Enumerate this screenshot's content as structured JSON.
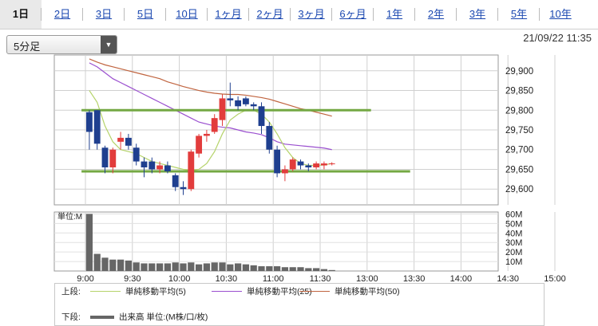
{
  "tabs": [
    {
      "label": "1日",
      "active": true
    },
    {
      "label": "2日"
    },
    {
      "label": "3日"
    },
    {
      "label": "5日"
    },
    {
      "label": "10日"
    },
    {
      "label": "1ヶ月"
    },
    {
      "label": "2ヶ月"
    },
    {
      "label": "3ヶ月"
    },
    {
      "label": "6ヶ月"
    },
    {
      "label": "1年"
    },
    {
      "label": "2年"
    },
    {
      "label": "3年"
    },
    {
      "label": "5年"
    },
    {
      "label": "10年"
    }
  ],
  "interval_select": {
    "value": "5分足",
    "arrow_icon": "triangle-down-icon"
  },
  "timestamp": "21/09/22 11:35",
  "colors": {
    "up": "#e23c3c",
    "down": "#1f3f8f",
    "sma5": "#b5d36a",
    "sma25": "#9a4fcf",
    "sma50": "#c0643f",
    "hline": "#74a843",
    "volume": "#666666"
  },
  "legend": {
    "upper_label": "上段:",
    "lower_label": "下段:",
    "sma5": "単純移動平均(5)",
    "sma25": "単純移動平均(25)",
    "sma50": "単純移動平均(50)",
    "volume": "出来高 単位:(M株/口/枚)"
  },
  "chart_data": {
    "type": "candlestick",
    "x_ticks": [
      "9:00",
      "9:30",
      "10:00",
      "10:30",
      "11:00",
      "11:30",
      "13:00",
      "13:30",
      "14:00",
      "14:30",
      "15:00"
    ],
    "price_ticks": [
      "29,900",
      "29,850",
      "29,800",
      "29,750",
      "29,700",
      "29,650",
      "29,600"
    ],
    "price_tick_values": [
      29900,
      29850,
      29800,
      29750,
      29700,
      29650,
      29600
    ],
    "ylim": [
      29560,
      29940
    ],
    "candles": [
      {
        "o": 29795,
        "h": 29800,
        "l": 29700,
        "c": 29745
      },
      {
        "o": 29800,
        "h": 29800,
        "l": 29700,
        "c": 29715
      },
      {
        "o": 29705,
        "h": 29710,
        "l": 29640,
        "c": 29655
      },
      {
        "o": 29655,
        "h": 29705,
        "l": 29640,
        "c": 29700
      },
      {
        "o": 29720,
        "h": 29745,
        "l": 29700,
        "c": 29730
      },
      {
        "o": 29730,
        "h": 29740,
        "l": 29700,
        "c": 29710
      },
      {
        "o": 29705,
        "h": 29715,
        "l": 29660,
        "c": 29670
      },
      {
        "o": 29670,
        "h": 29680,
        "l": 29630,
        "c": 29655
      },
      {
        "o": 29670,
        "h": 29680,
        "l": 29640,
        "c": 29650
      },
      {
        "o": 29650,
        "h": 29670,
        "l": 29640,
        "c": 29660
      },
      {
        "o": 29660,
        "h": 29670,
        "l": 29640,
        "c": 29645
      },
      {
        "o": 29635,
        "h": 29640,
        "l": 29595,
        "c": 29605
      },
      {
        "o": 29605,
        "h": 29620,
        "l": 29585,
        "c": 29600
      },
      {
        "o": 29600,
        "h": 29700,
        "l": 29595,
        "c": 29695
      },
      {
        "o": 29690,
        "h": 29740,
        "l": 29680,
        "c": 29735
      },
      {
        "o": 29735,
        "h": 29750,
        "l": 29720,
        "c": 29740
      },
      {
        "o": 29745,
        "h": 29790,
        "l": 29740,
        "c": 29780
      },
      {
        "o": 29775,
        "h": 29840,
        "l": 29760,
        "c": 29830
      },
      {
        "o": 29830,
        "h": 29870,
        "l": 29810,
        "c": 29825
      },
      {
        "o": 29825,
        "h": 29835,
        "l": 29800,
        "c": 29810
      },
      {
        "o": 29830,
        "h": 29835,
        "l": 29810,
        "c": 29815
      },
      {
        "o": 29815,
        "h": 29820,
        "l": 29800,
        "c": 29810
      },
      {
        "o": 29810,
        "h": 29820,
        "l": 29740,
        "c": 29760
      },
      {
        "o": 29760,
        "h": 29770,
        "l": 29690,
        "c": 29700
      },
      {
        "o": 29700,
        "h": 29710,
        "l": 29630,
        "c": 29640
      },
      {
        "o": 29640,
        "h": 29660,
        "l": 29620,
        "c": 29650
      },
      {
        "o": 29650,
        "h": 29680,
        "l": 29645,
        "c": 29675
      },
      {
        "o": 29670,
        "h": 29675,
        "l": 29650,
        "c": 29660
      },
      {
        "o": 29660,
        "h": 29665,
        "l": 29645,
        "c": 29655
      },
      {
        "o": 29655,
        "h": 29670,
        "l": 29650,
        "c": 29665
      },
      {
        "o": 29660,
        "h": 29670,
        "l": 29650,
        "c": 29665
      },
      {
        "o": 29665,
        "h": 29668,
        "l": 29660,
        "c": 29665
      }
    ],
    "sma5": [
      29850,
      29820,
      29760,
      29720,
      29700,
      29695,
      29690,
      29680,
      29670,
      29665,
      29660,
      29655,
      29650,
      29648,
      29650,
      29665,
      29695,
      29740,
      29775,
      29790,
      29800,
      29800,
      29790,
      29770,
      29740,
      29705,
      29680,
      29665,
      29660,
      29660,
      29661,
      29665
    ],
    "sma25": [
      29920,
      29910,
      29895,
      29880,
      29870,
      29860,
      29850,
      29840,
      29830,
      29820,
      29810,
      29800,
      29790,
      29780,
      29770,
      29765,
      29760,
      29757,
      29755,
      29750,
      29745,
      29742,
      29738,
      29730,
      29720,
      29714,
      29712,
      29710,
      29708,
      29706,
      29704,
      29700
    ],
    "sma50": [
      29930,
      29922,
      29915,
      29910,
      29905,
      29900,
      29895,
      29890,
      29885,
      29880,
      29872,
      29866,
      29860,
      29855,
      29850,
      29846,
      29843,
      29841,
      29840,
      29840,
      29838,
      29835,
      29832,
      29828,
      29822,
      29816,
      29810,
      29804,
      29800,
      29795,
      29790,
      29785
    ],
    "hlines": [
      {
        "value": 29800,
        "from": 0,
        "to": 36
      },
      {
        "value": 29645,
        "from": 0,
        "to": 41
      }
    ],
    "volume_unit_label": "単位:M",
    "volume_ticks": [
      "60M",
      "50M",
      "40M",
      "30M",
      "20M",
      "10M"
    ],
    "volume_tick_values": [
      60,
      50,
      40,
      30,
      20,
      10
    ],
    "volume_ylim": [
      0,
      62
    ],
    "volume": [
      60,
      18,
      14,
      12,
      12,
      11,
      9,
      8,
      8,
      8,
      8,
      9,
      8,
      9,
      7,
      8,
      9,
      9,
      7,
      8,
      7,
      6,
      5,
      5,
      5,
      4,
      4,
      4,
      3,
      3,
      2,
      1
    ]
  }
}
